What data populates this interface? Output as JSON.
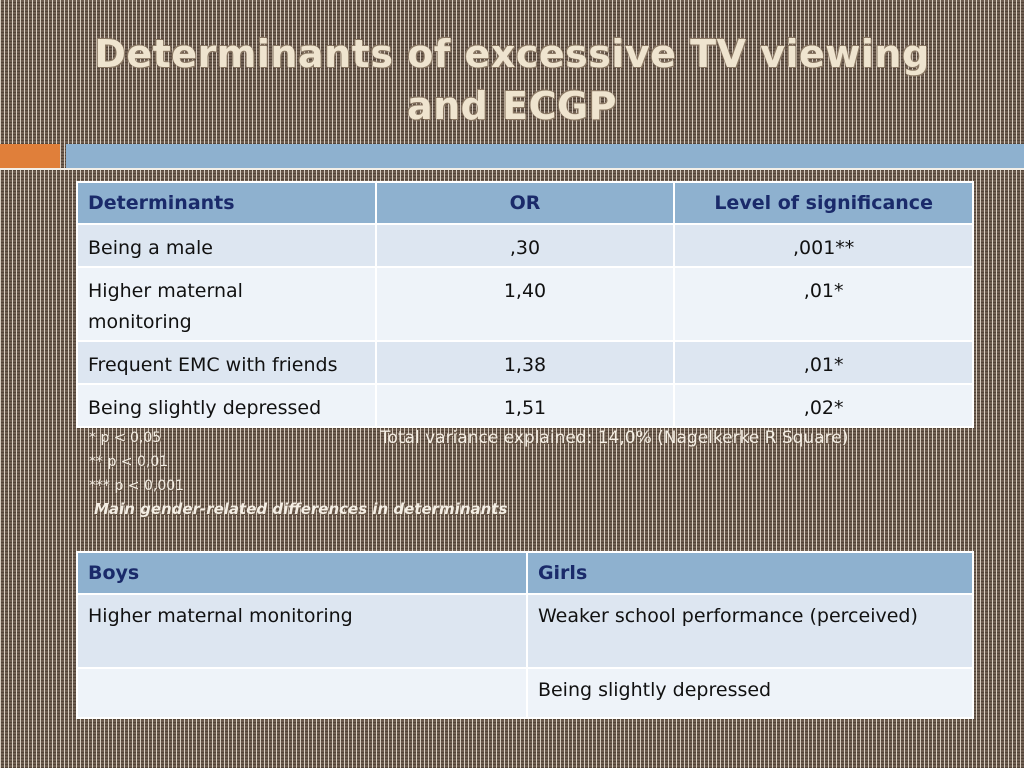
{
  "slide": {
    "title_line1": "Determinants of excessive TV viewing",
    "title_line2": "and ECGP"
  },
  "table1": {
    "headers": [
      "Determinants",
      "OR",
      "Level of significance"
    ],
    "rows": [
      [
        "Being a male",
        ",30",
        ",001**"
      ],
      [
        "Higher maternal monitoring",
        "1,40",
        ",01*"
      ],
      [
        "Frequent EMC with friends",
        "1,38",
        ",01*"
      ],
      [
        "Being slightly depressed",
        "1,51",
        ",02*"
      ]
    ]
  },
  "notes": {
    "p005": "* p < 0,05",
    "p001": "** p < 0,01",
    "p0001": "*** p < 0,001",
    "variance": "Total variance explained: 14,0% (Nagelkerke R Square)",
    "subtitle": "Main gender-related differences in determinants"
  },
  "table2": {
    "headers": [
      "Boys",
      "Girls"
    ],
    "rows": [
      [
        "Higher maternal monitoring",
        "Weaker school performance (perceived)"
      ],
      [
        "",
        "Being slightly depressed"
      ]
    ]
  },
  "colors": {
    "accent_orange": "#e07f3a",
    "accent_blue": "#8eb1cf",
    "header_text": "#1a2a6a"
  }
}
